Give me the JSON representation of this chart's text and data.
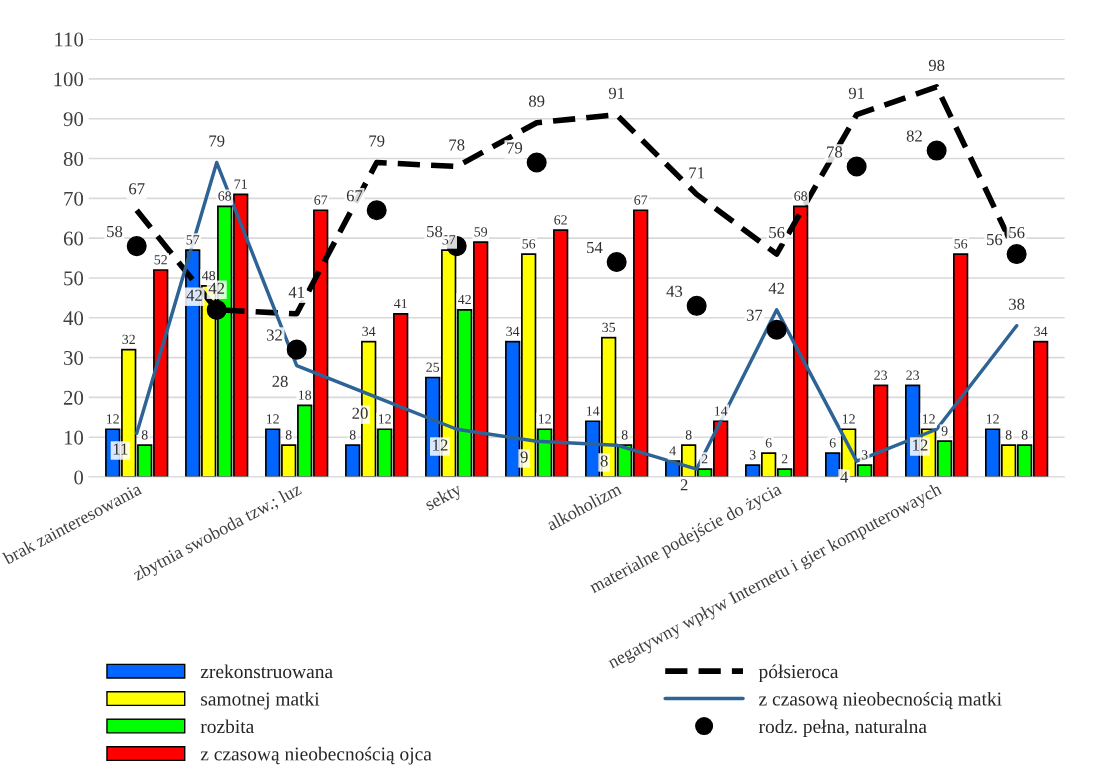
{
  "chart_data": {
    "type": "bar",
    "categories": [
      "brak zainteresowania",
      null,
      "zbytnia swoboda tzw.; luz",
      null,
      "sekty",
      null,
      "alkoholizm",
      null,
      "materialne podejście do życia",
      null,
      "negatywny wpływ Internetu i gier komputerowaych",
      null
    ],
    "series": [
      {
        "name": "zrekonstruowana",
        "color": "#0066ff",
        "values": [
          12,
          57,
          12,
          8,
          25,
          34,
          14,
          4,
          3,
          6,
          23,
          12
        ]
      },
      {
        "name": "samotnej matki",
        "color": "#ffff00",
        "values": [
          32,
          48,
          8,
          34,
          57,
          56,
          35,
          8,
          6,
          12,
          12,
          8
        ]
      },
      {
        "name": "rozbita",
        "color": "#00ff00",
        "values": [
          8,
          68,
          18,
          12,
          42,
          12,
          8,
          2,
          2,
          3,
          9,
          8
        ]
      },
      {
        "name": "z czasową nieobecnością ojca",
        "color": "#ff0000",
        "values": [
          52,
          71,
          67,
          41,
          59,
          62,
          67,
          14,
          68,
          23,
          56,
          34
        ]
      },
      {
        "name": "półsieroca",
        "type": "line",
        "line_style": "dashed",
        "marker": "none",
        "color": "#000000",
        "values": [
          67,
          42,
          41,
          79,
          78,
          89,
          91,
          71,
          56,
          91,
          98,
          56
        ]
      },
      {
        "name": "z czasową nieobecnością matki",
        "type": "line",
        "line_style": "solid",
        "marker": "none",
        "color": "#2e6396",
        "values": [
          11,
          79,
          28,
          20,
          12,
          9,
          8,
          2,
          42,
          4,
          12,
          38
        ]
      },
      {
        "name": "rodz. pełna, naturalna",
        "type": "scatter",
        "marker": "circle",
        "color": "#000000",
        "values": [
          58,
          42,
          32,
          67,
          58,
          79,
          54,
          43,
          37,
          78,
          82,
          56
        ]
      }
    ],
    "ylim": [
      0,
      110
    ],
    "yticks": [
      0,
      10,
      20,
      30,
      40,
      50,
      60,
      70,
      80,
      90,
      100,
      110
    ],
    "grid": "y",
    "legend": "bottom",
    "data_labels": true
  }
}
